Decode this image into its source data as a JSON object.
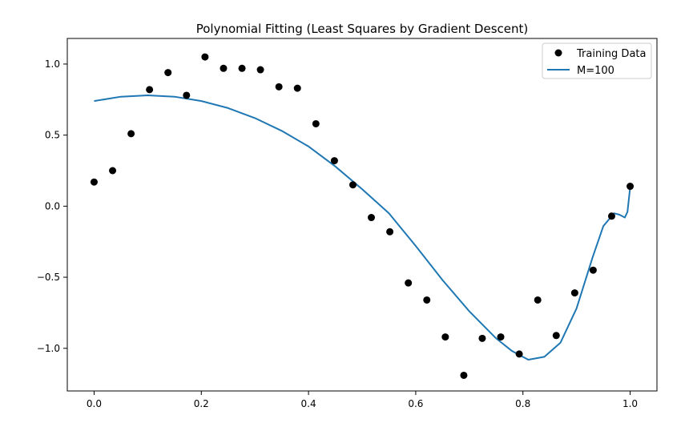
{
  "chart_data": {
    "type": "scatter",
    "title": "Polynomial Fitting (Least Squares by Gradient Descent)",
    "xlabel": "",
    "ylabel": "",
    "xlim": [
      -0.05,
      1.05
    ],
    "ylim": [
      -1.3,
      1.18
    ],
    "xticks": [
      0.0,
      0.2,
      0.4,
      0.6,
      0.8,
      1.0
    ],
    "xtick_labels": [
      "0.0",
      "0.2",
      "0.4",
      "0.6",
      "0.8",
      "1.0"
    ],
    "yticks": [
      1.0,
      0.5,
      0.0,
      -0.5,
      -1.0
    ],
    "ytick_labels": [
      "1.0",
      "0.5",
      "0.0",
      "−0.5",
      "−1.0"
    ],
    "grid": false,
    "legend_position": "top-right",
    "series": [
      {
        "name": "Training Data",
        "kind": "scatter",
        "color": "#000000",
        "x": [
          0.0,
          0.0345,
          0.069,
          0.1034,
          0.1379,
          0.1724,
          0.2069,
          0.2414,
          0.2759,
          0.3103,
          0.3448,
          0.3793,
          0.4138,
          0.4483,
          0.4828,
          0.5172,
          0.5517,
          0.5862,
          0.6207,
          0.6552,
          0.6897,
          0.7241,
          0.7586,
          0.7931,
          0.8276,
          0.8621,
          0.8966,
          0.931,
          0.9655,
          1.0
        ],
        "y": [
          0.17,
          0.25,
          0.51,
          0.82,
          0.94,
          0.78,
          1.05,
          0.97,
          0.97,
          0.96,
          0.84,
          0.83,
          0.58,
          0.32,
          0.15,
          -0.08,
          -0.18,
          -0.54,
          -0.66,
          -0.92,
          -1.19,
          -0.93,
          -0.92,
          -1.04,
          -0.66,
          -0.91,
          -0.61,
          -0.45,
          -0.07,
          0.14
        ]
      },
      {
        "name": "M=100",
        "kind": "line",
        "color": "#1f77b4",
        "x": [
          0.0,
          0.05,
          0.1,
          0.15,
          0.2,
          0.25,
          0.3,
          0.35,
          0.4,
          0.45,
          0.5,
          0.55,
          0.6,
          0.65,
          0.7,
          0.75,
          0.78,
          0.81,
          0.84,
          0.87,
          0.9,
          0.93,
          0.95,
          0.97,
          0.98,
          0.99,
          0.995,
          1.0
        ],
        "y": [
          0.74,
          0.77,
          0.78,
          0.77,
          0.74,
          0.69,
          0.62,
          0.53,
          0.42,
          0.28,
          0.12,
          -0.05,
          -0.28,
          -0.52,
          -0.74,
          -0.93,
          -1.02,
          -1.08,
          -1.06,
          -0.96,
          -0.72,
          -0.36,
          -0.14,
          -0.05,
          -0.06,
          -0.08,
          -0.04,
          0.13
        ]
      }
    ]
  }
}
